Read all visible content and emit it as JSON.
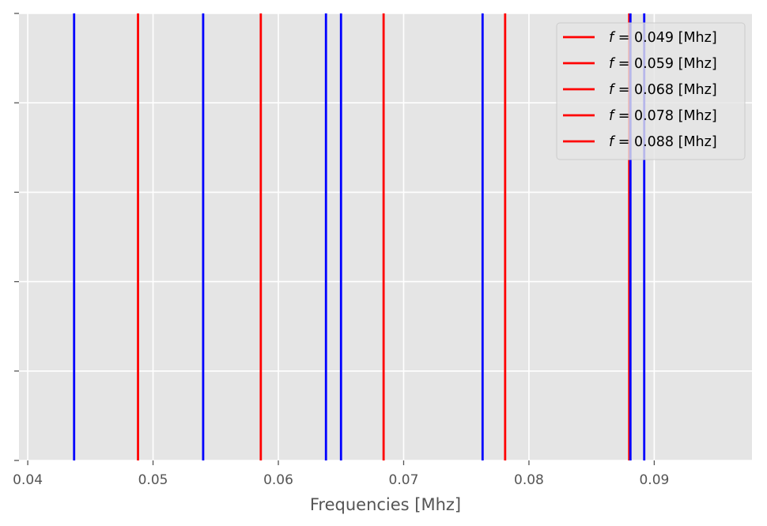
{
  "chart_data": {
    "type": "line",
    "title": "",
    "xlabel": "Frequencies [Mhz]",
    "ylabel": "",
    "xlim": [
      0.0393,
      0.0978
    ],
    "xticks": [
      0.04,
      0.05,
      0.06,
      0.07,
      0.08,
      0.09
    ],
    "xtick_labels": [
      "0.04",
      "0.05",
      "0.06",
      "0.07",
      "0.08",
      "0.09"
    ],
    "ytick_count": 6,
    "grid": true,
    "background": "#e5e5e5",
    "legend_position": "top-right",
    "series": [
      {
        "name": "f = 0.049 [Mhz]",
        "legend_var": "f",
        "legend_rest": " = 0.049 [Mhz]",
        "color": "#ff0000",
        "x": [
          0.0488
        ]
      },
      {
        "name": "f = 0.059 [Mhz]",
        "legend_var": "f",
        "legend_rest": " = 0.059 [Mhz]",
        "color": "#ff0000",
        "x": [
          0.0586
        ]
      },
      {
        "name": "f = 0.068 [Mhz]",
        "legend_var": "f",
        "legend_rest": " = 0.068 [Mhz]",
        "color": "#ff0000",
        "x": [
          0.0684
        ]
      },
      {
        "name": "f = 0.078 [Mhz]",
        "legend_var": "f",
        "legend_rest": " = 0.078 [Mhz]",
        "color": "#ff0000",
        "x": [
          0.0781
        ]
      },
      {
        "name": "f = 0.088 [Mhz]",
        "legend_var": "f",
        "legend_rest": " = 0.088 [Mhz]",
        "color": "#ff0000",
        "x": [
          0.088
        ]
      },
      {
        "color": "#0000ff",
        "x": [
          0.0437,
          0.054,
          0.0638,
          0.065,
          0.0763,
          0.0881,
          0.0892
        ]
      }
    ]
  }
}
